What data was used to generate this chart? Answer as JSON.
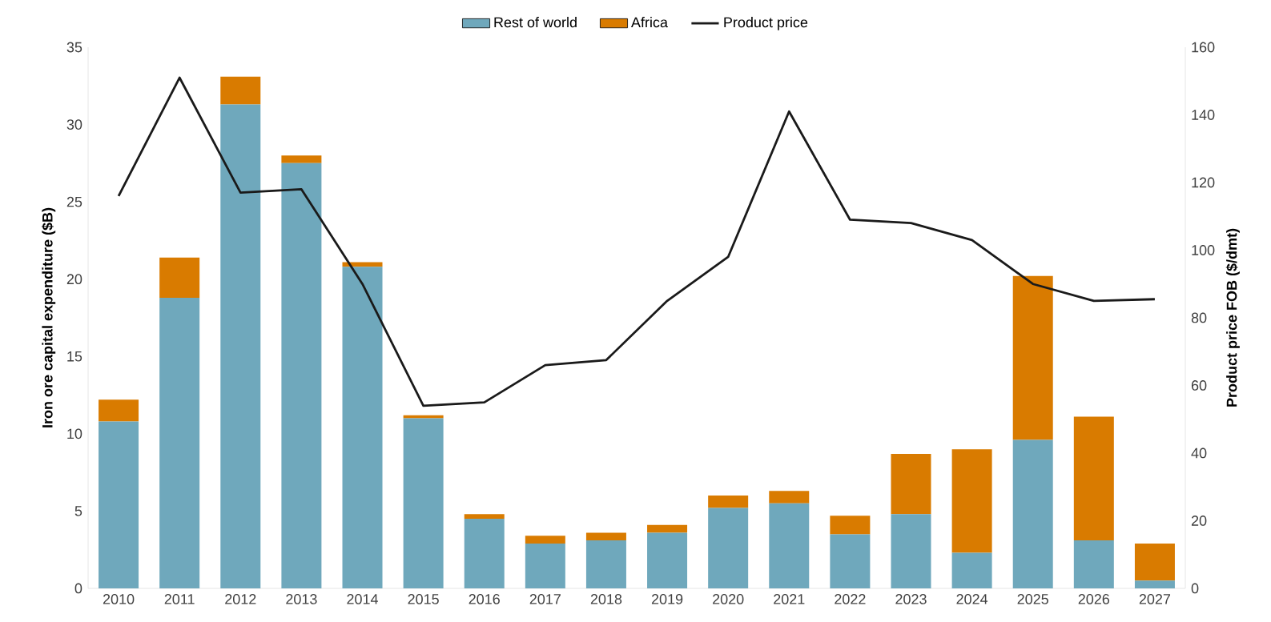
{
  "chart_data": {
    "type": "bar",
    "stacked": true,
    "legend": "top",
    "ylabel": "Iron ore capital expenditure ($B)",
    "y2label": "Product price FOB ($/dmt)",
    "categories": [
      "2010",
      "2011",
      "2012",
      "2013",
      "2014",
      "2015",
      "2016",
      "2017",
      "2018",
      "2019",
      "2020",
      "2021",
      "2022",
      "2023",
      "2024",
      "2025",
      "2026",
      "2027"
    ],
    "series": [
      {
        "name": "Rest of world",
        "color": "#6fa8bc",
        "values": [
          10.8,
          18.8,
          31.3,
          27.5,
          20.8,
          11.0,
          4.5,
          2.9,
          3.1,
          3.6,
          5.2,
          5.5,
          3.5,
          4.8,
          2.3,
          9.6,
          3.1,
          0.5
        ]
      },
      {
        "name": "Africa",
        "color": "#d97b00",
        "values": [
          1.4,
          2.6,
          1.8,
          0.5,
          0.3,
          0.2,
          0.3,
          0.5,
          0.5,
          0.5,
          0.8,
          0.8,
          1.2,
          3.9,
          6.7,
          10.6,
          8.0,
          2.4
        ]
      },
      {
        "name": "Product price",
        "type": "line",
        "axis": "y2",
        "color": "#1a1a1a",
        "values": [
          116,
          151,
          117,
          118,
          90,
          54,
          55,
          66,
          67.5,
          85,
          98,
          141,
          109,
          108,
          103,
          90,
          85,
          85.5
        ]
      }
    ],
    "ylim": [
      0,
      35
    ],
    "yticks": [
      0,
      5,
      10,
      15,
      20,
      25,
      30,
      35
    ],
    "y2lim": [
      0,
      160
    ],
    "y2ticks": [
      0,
      20,
      40,
      60,
      80,
      100,
      120,
      140,
      160
    ]
  }
}
